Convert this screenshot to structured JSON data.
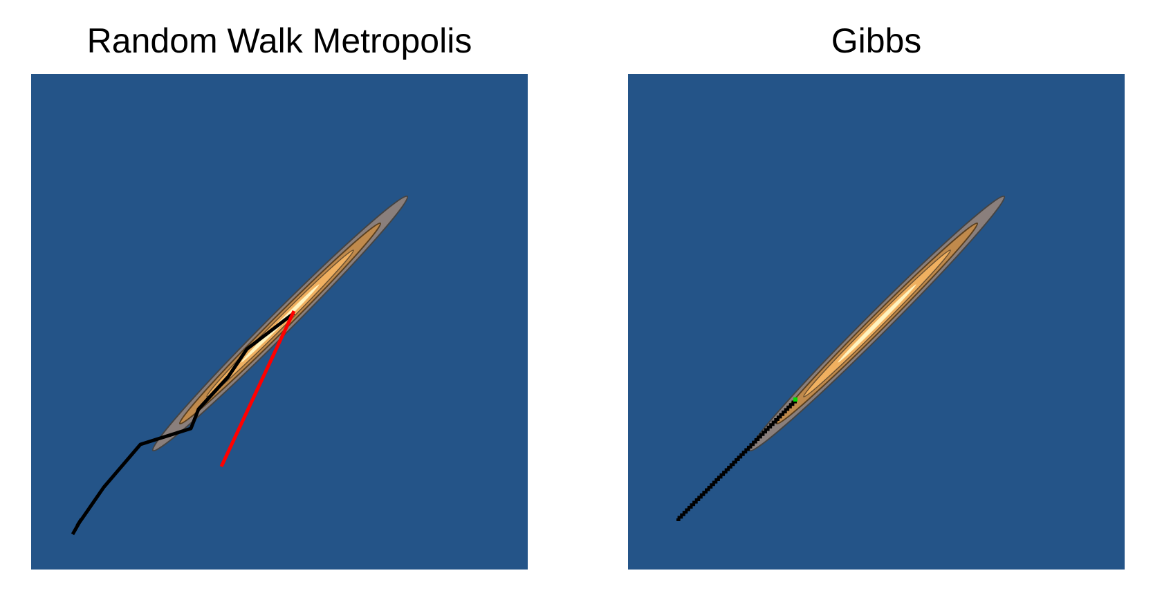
{
  "panels": [
    {
      "title": "Random Walk Metropolis"
    },
    {
      "title": "Gibbs"
    }
  ],
  "colors": {
    "background": "#245488",
    "contour_outer": "#8a7f7c",
    "contour_mid": "#c08a4c",
    "contour_inner": "#f0b060",
    "contour_core": "#fff4c0",
    "path": "#000000",
    "rejected": "#ff0000",
    "current": "#00dd00"
  }
}
